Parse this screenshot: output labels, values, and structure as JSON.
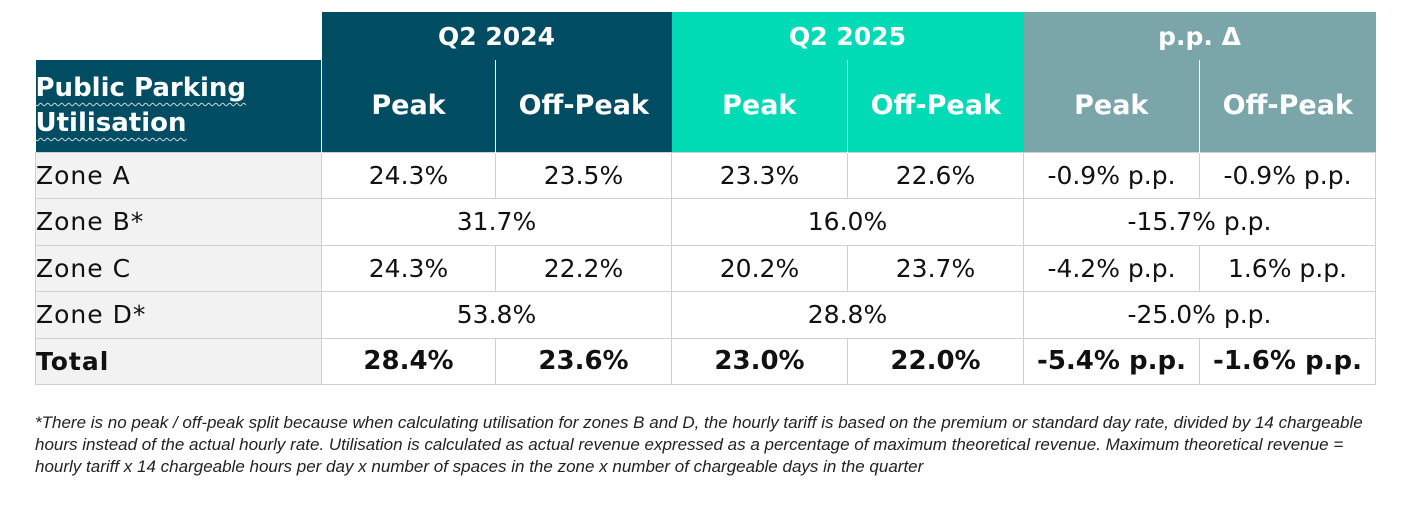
{
  "table": {
    "title": "Public Parking Utilisation",
    "groups": {
      "q2_2024": "Q2 2024",
      "q2_2025": "Q2 2025",
      "pp_delta": "p.p. Δ"
    },
    "subheaders": {
      "q2_2024_peak": "Peak",
      "q2_2024_offpeak": "Off-Peak",
      "q2_2025_peak": "Peak",
      "q2_2025_offpeak": "Off-Peak",
      "pp_peak": "Peak",
      "pp_offpeak": "Off-Peak"
    },
    "rows": {
      "zone_a": {
        "label": "Zone A",
        "q24_peak": "24.3%",
        "q24_off": "23.5%",
        "q25_peak": "23.3%",
        "q25_off": "22.6%",
        "pp_peak": "-0.9% p.p.",
        "pp_off": "-0.9% p.p."
      },
      "zone_b": {
        "label": "Zone B*",
        "q24": "31.7%",
        "q25": "16.0%",
        "pp": "-15.7% p.p."
      },
      "zone_c": {
        "label": "Zone C",
        "q24_peak": "24.3%",
        "q24_off": "22.2%",
        "q25_peak": "20.2%",
        "q25_off": "23.7%",
        "pp_peak": "-4.2% p.p.",
        "pp_off": "1.6% p.p."
      },
      "zone_d": {
        "label": "Zone D*",
        "q24": "53.8%",
        "q25": "28.8%",
        "pp": "-25.0% p.p."
      },
      "total": {
        "label": "Total",
        "q24_peak": "28.4%",
        "q24_off": "23.6%",
        "q25_peak": "23.0%",
        "q25_off": "22.0%",
        "pp_peak": "-5.4% p.p.",
        "pp_off": "-1.6% p.p."
      }
    }
  },
  "footnote": "*There is no peak / off-peak split because when calculating utilisation for zones B and D, the hourly tariff is based on the premium or standard day rate, divided by 14 chargeable hours instead of the actual hourly rate. Utilisation is calculated as actual revenue expressed as a percentage of maximum theoretical revenue. Maximum theoretical revenue = hourly tariff x 14 chargeable hours per day x number of spaces in the zone x number of chargeable days in the quarter",
  "colors": {
    "navy": "#004d63",
    "teal": "#00dbb5",
    "grey": "#7aa5a9",
    "label_bg": "#f2f2f2",
    "border": "#d0d0d0"
  }
}
